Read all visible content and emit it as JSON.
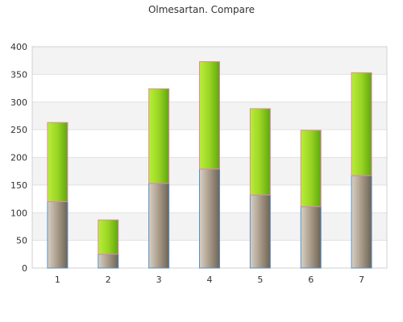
{
  "chart_data": {
    "type": "bar",
    "stacked": true,
    "title": "Olmesartan. Compare",
    "xlabel": "",
    "ylabel": "",
    "categories": [
      "1",
      "2",
      "3",
      "4",
      "5",
      "6",
      "7"
    ],
    "ylim": [
      0,
      400
    ],
    "yticks": [
      "0",
      "50",
      "100",
      "150",
      "200",
      "250",
      "300",
      "350",
      "400"
    ],
    "grid": true,
    "legend": "none",
    "series": [
      {
        "values": [
          120,
          25,
          153,
          179,
          132,
          111,
          167
        ],
        "color": "#a89a88"
      },
      {
        "values": [
          143,
          62,
          171,
          194,
          156,
          138,
          186
        ],
        "color": "#9ad424"
      }
    ]
  }
}
